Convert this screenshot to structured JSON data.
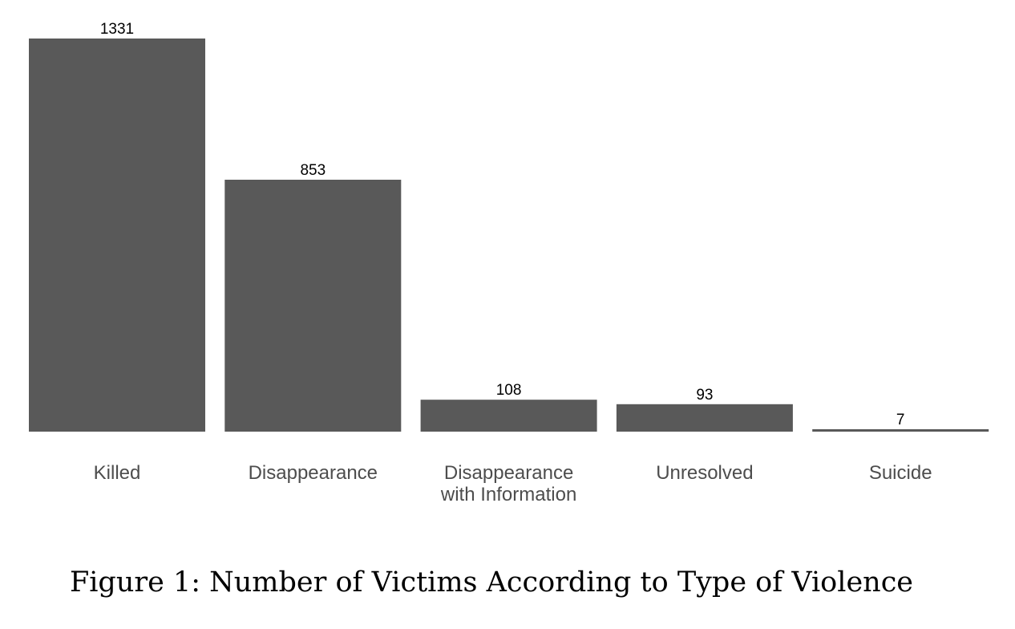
{
  "caption": "Figure 1: Number of Victims According to Type of Violence",
  "bar_color": "#595959",
  "label_color": "#4d4d4d",
  "chart_data": {
    "type": "bar",
    "title": "",
    "xlabel": "",
    "ylabel": "",
    "categories": [
      [
        "Killed"
      ],
      [
        "Disappearance"
      ],
      [
        "Disappearance",
        "with Information"
      ],
      [
        "Unresolved"
      ],
      [
        "Suicide"
      ]
    ],
    "values": [
      1331,
      853,
      108,
      93,
      7
    ],
    "data_labels": [
      "1331",
      "853",
      "108",
      "93",
      "7"
    ],
    "ylim": [
      0,
      1331
    ],
    "grid": false
  }
}
